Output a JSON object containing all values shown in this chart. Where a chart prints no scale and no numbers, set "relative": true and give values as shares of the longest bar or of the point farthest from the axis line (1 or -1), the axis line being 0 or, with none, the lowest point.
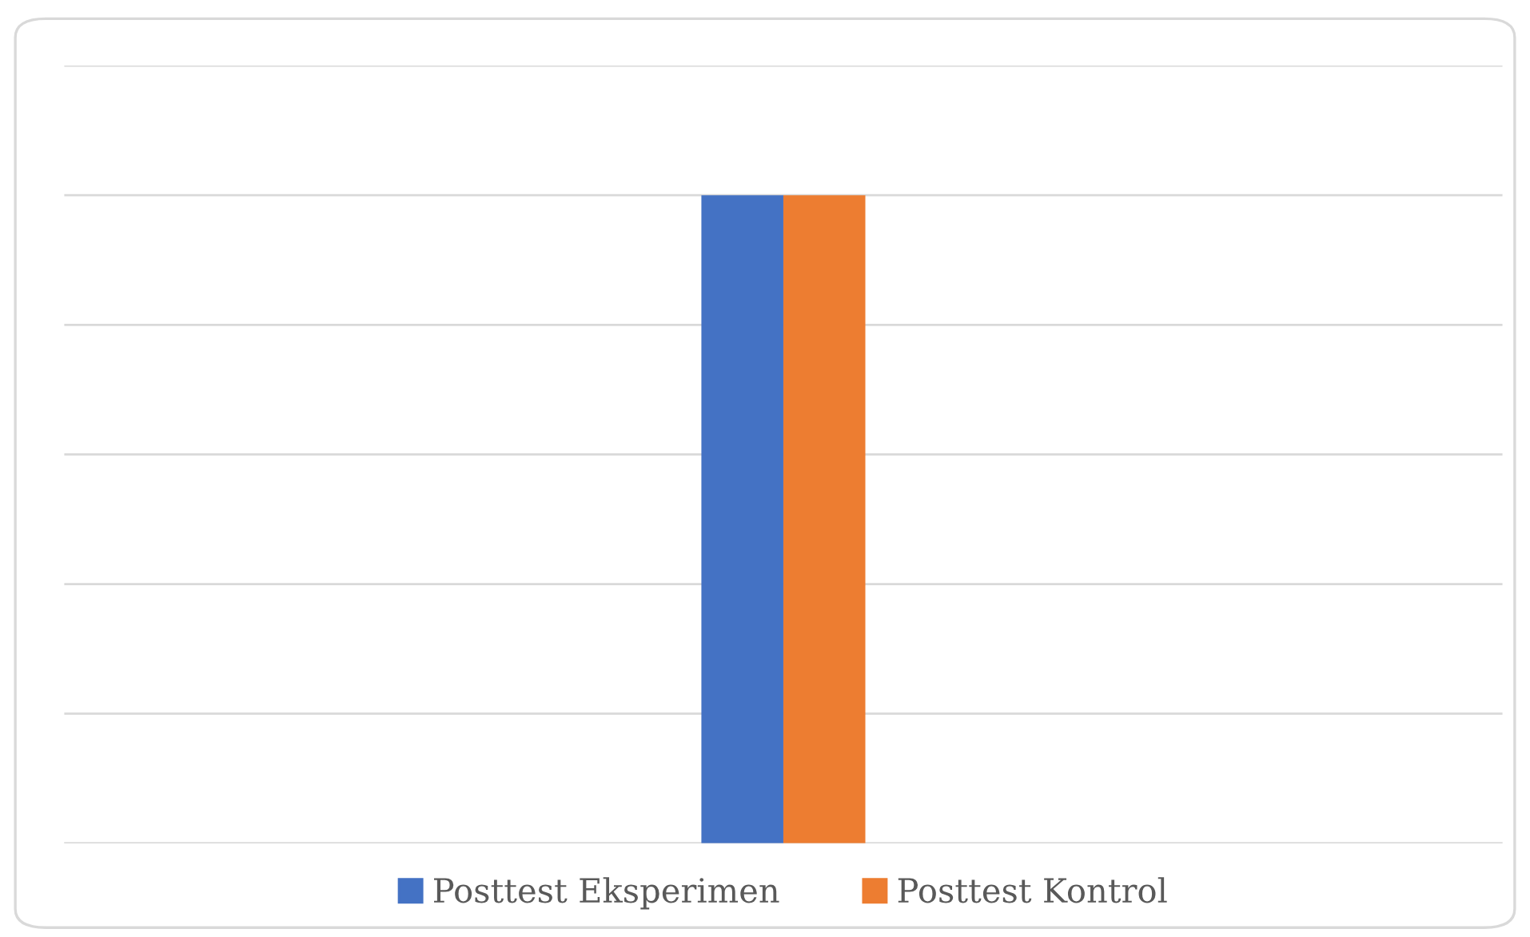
{
  "chart_data": {
    "type": "bar",
    "relative": true,
    "categories": [
      null
    ],
    "grid": "y",
    "legend": "bottom",
    "series": [
      {
        "name": "Posttest Eksperimen",
        "color": "#4472c4",
        "values": [
          1
        ]
      },
      {
        "name": "Posttest Kontrol",
        "color": "#ed7d31",
        "values": [
          1
        ]
      }
    ]
  }
}
